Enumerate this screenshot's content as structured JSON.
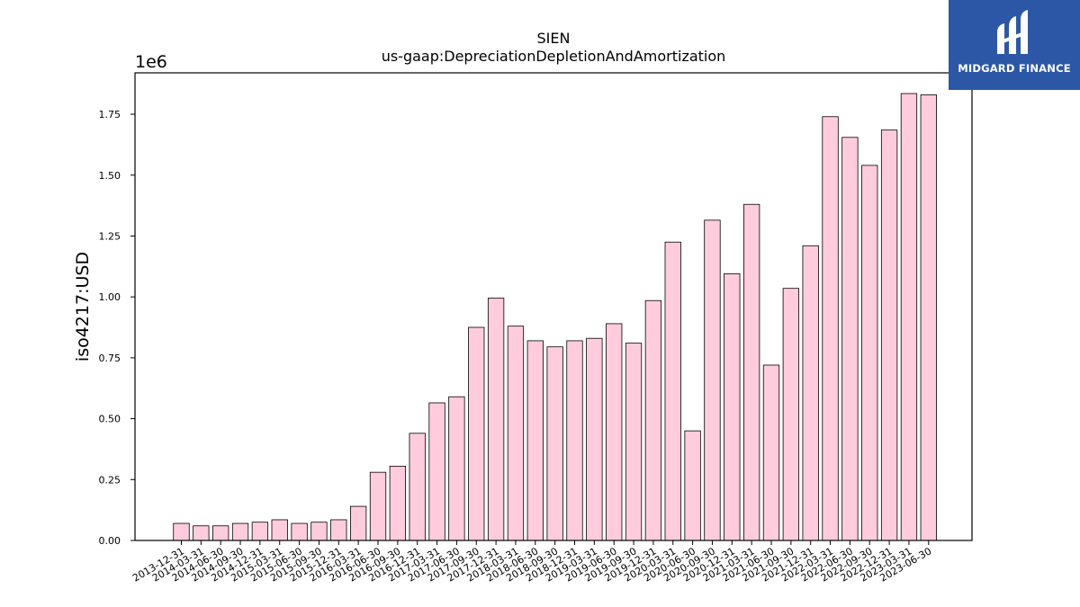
{
  "logo": {
    "text": "MIDGARD FINANCE"
  },
  "chart_data": {
    "type": "bar",
    "title": "SIEN",
    "subtitle": "us-gaap:DepreciationDepletionAndAmortization",
    "ylabel": "iso4217:USD",
    "xlabel": "",
    "offset_text": "1e6",
    "ylim": [
      0,
      1.92
    ],
    "yticks": [
      "0.00",
      "0.25",
      "0.50",
      "0.75",
      "1.00",
      "1.25",
      "1.50",
      "1.75"
    ],
    "bar_color": "#ffccdd",
    "bar_edge_color": "#000000",
    "grid": false,
    "categories": [
      "2013-12-31",
      "2014-03-31",
      "2014-06-30",
      "2014-09-30",
      "2014-12-31",
      "2015-03-31",
      "2015-06-30",
      "2015-09-30",
      "2015-12-31",
      "2016-03-31",
      "2016-06-30",
      "2016-09-30",
      "2016-12-31",
      "2017-03-31",
      "2017-06-30",
      "2017-09-30",
      "2017-12-31",
      "2018-03-31",
      "2018-06-30",
      "2018-09-30",
      "2018-12-31",
      "2019-03-31",
      "2019-06-30",
      "2019-09-30",
      "2019-12-31",
      "2020-03-31",
      "2020-06-30",
      "2020-09-30",
      "2020-12-31",
      "2021-03-31",
      "2021-06-30",
      "2021-09-30",
      "2021-12-31",
      "2022-03-31",
      "2022-06-30",
      "2022-09-30",
      "2022-12-31",
      "2023-03-31",
      "2023-06-30"
    ],
    "values": [
      0.07,
      0.06,
      0.06,
      0.07,
      0.075,
      0.085,
      0.07,
      0.075,
      0.085,
      0.14,
      0.28,
      0.305,
      0.44,
      0.565,
      0.59,
      0.875,
      0.995,
      0.88,
      0.82,
      0.795,
      0.82,
      0.83,
      0.89,
      0.81,
      0.985,
      1.225,
      0.45,
      1.315,
      1.095,
      1.38,
      0.72,
      1.035,
      1.21,
      1.74,
      1.655,
      1.54,
      1.685,
      1.835,
      1.83
    ]
  }
}
